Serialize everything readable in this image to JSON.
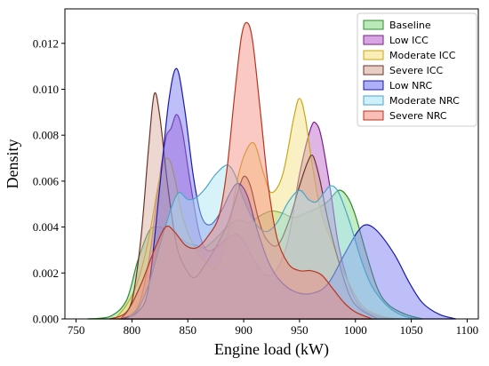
{
  "chart_data": {
    "type": "area",
    "title": "",
    "xlabel": "Engine load (kW)",
    "ylabel": "Density",
    "xlim": [
      740,
      1110
    ],
    "ylim": [
      0,
      0.0135
    ],
    "xticks": [
      750,
      800,
      850,
      900,
      950,
      1000,
      1050,
      1100
    ],
    "yticks": [
      0.0,
      0.002,
      0.004,
      0.006,
      0.008,
      0.01,
      0.012
    ],
    "ytick_labels": [
      "0.000",
      "0.002",
      "0.004",
      "0.006",
      "0.008",
      "0.010",
      "0.012"
    ],
    "grid": false,
    "legend_position": "top-right",
    "series": [
      {
        "name": "Baseline",
        "fill": "#7fd67f",
        "edge": "#2e8b2e",
        "points": [
          [
            760,
            0
          ],
          [
            780,
            0.0001
          ],
          [
            795,
            0.0008
          ],
          [
            805,
            0.0025
          ],
          [
            815,
            0.0038
          ],
          [
            822,
            0.004
          ],
          [
            830,
            0.0039
          ],
          [
            840,
            0.0036
          ],
          [
            850,
            0.0033
          ],
          [
            858,
            0.0032
          ],
          [
            865,
            0.0031
          ],
          [
            875,
            0.0035
          ],
          [
            885,
            0.004
          ],
          [
            895,
            0.0043
          ],
          [
            905,
            0.0042
          ],
          [
            915,
            0.0045
          ],
          [
            925,
            0.0047
          ],
          [
            935,
            0.0046
          ],
          [
            945,
            0.0044
          ],
          [
            955,
            0.0046
          ],
          [
            965,
            0.0048
          ],
          [
            975,
            0.0051
          ],
          [
            985,
            0.0056
          ],
          [
            993,
            0.0053
          ],
          [
            1000,
            0.0045
          ],
          [
            1010,
            0.0028
          ],
          [
            1020,
            0.0013
          ],
          [
            1030,
            0.0006
          ],
          [
            1045,
            0.0002
          ],
          [
            1060,
            0
          ]
        ]
      },
      {
        "name": "Low ICC",
        "fill": "#b85cc8",
        "edge": "#7a1f8a",
        "points": [
          [
            790,
            0
          ],
          [
            805,
            0.0005
          ],
          [
            815,
            0.0025
          ],
          [
            823,
            0.0055
          ],
          [
            830,
            0.0078
          ],
          [
            835,
            0.0083
          ],
          [
            840,
            0.0089
          ],
          [
            845,
            0.0082
          ],
          [
            852,
            0.006
          ],
          [
            860,
            0.0038
          ],
          [
            867,
            0.003
          ],
          [
            875,
            0.0031
          ],
          [
            885,
            0.0035
          ],
          [
            893,
            0.0037
          ],
          [
            900,
            0.0034
          ],
          [
            910,
            0.0025
          ],
          [
            920,
            0.0019
          ],
          [
            930,
            0.0022
          ],
          [
            940,
            0.0035
          ],
          [
            950,
            0.0063
          ],
          [
            960,
            0.0083
          ],
          [
            965,
            0.0085
          ],
          [
            970,
            0.0078
          ],
          [
            978,
            0.0055
          ],
          [
            985,
            0.0032
          ],
          [
            995,
            0.0014
          ],
          [
            1005,
            0.0005
          ],
          [
            1020,
            0.0001
          ],
          [
            1035,
            0
          ]
        ]
      },
      {
        "name": "Moderate ICC",
        "fill": "#f2e07a",
        "edge": "#c9a617",
        "points": [
          [
            785,
            0
          ],
          [
            795,
            0.0006
          ],
          [
            805,
            0.0016
          ],
          [
            815,
            0.0035
          ],
          [
            825,
            0.0062
          ],
          [
            832,
            0.007
          ],
          [
            838,
            0.0062
          ],
          [
            845,
            0.0045
          ],
          [
            855,
            0.0032
          ],
          [
            865,
            0.0025
          ],
          [
            875,
            0.0022
          ],
          [
            885,
            0.0035
          ],
          [
            895,
            0.0062
          ],
          [
            903,
            0.0074
          ],
          [
            910,
            0.0076
          ],
          [
            918,
            0.0063
          ],
          [
            925,
            0.0055
          ],
          [
            935,
            0.0063
          ],
          [
            945,
            0.0088
          ],
          [
            950,
            0.0096
          ],
          [
            955,
            0.0088
          ],
          [
            962,
            0.0065
          ],
          [
            970,
            0.0045
          ],
          [
            980,
            0.0032
          ],
          [
            990,
            0.002
          ],
          [
            1000,
            0.001
          ],
          [
            1010,
            0.0004
          ],
          [
            1025,
            0.0001
          ],
          [
            1040,
            0
          ]
        ]
      },
      {
        "name": "Severe ICC",
        "fill": "#d6a898",
        "edge": "#6b3326",
        "points": [
          [
            790,
            0
          ],
          [
            800,
            0.0008
          ],
          [
            808,
            0.0035
          ],
          [
            815,
            0.0075
          ],
          [
            820,
            0.0098
          ],
          [
            825,
            0.0088
          ],
          [
            832,
            0.0058
          ],
          [
            840,
            0.0032
          ],
          [
            848,
            0.0022
          ],
          [
            856,
            0.0018
          ],
          [
            866,
            0.0024
          ],
          [
            876,
            0.0032
          ],
          [
            886,
            0.0042
          ],
          [
            894,
            0.0054
          ],
          [
            900,
            0.0062
          ],
          [
            906,
            0.0058
          ],
          [
            913,
            0.0044
          ],
          [
            920,
            0.0035
          ],
          [
            930,
            0.0032
          ],
          [
            940,
            0.0042
          ],
          [
            950,
            0.0058
          ],
          [
            957,
            0.0068
          ],
          [
            962,
            0.0071
          ],
          [
            968,
            0.0061
          ],
          [
            975,
            0.0044
          ],
          [
            985,
            0.0025
          ],
          [
            995,
            0.001
          ],
          [
            1005,
            0.0004
          ],
          [
            1020,
            0
          ]
        ]
      },
      {
        "name": "Low NRC",
        "fill": "#6e6ef0",
        "edge": "#1b1ba8",
        "points": [
          [
            790,
            0
          ],
          [
            805,
            0.0003
          ],
          [
            815,
            0.0014
          ],
          [
            825,
            0.0058
          ],
          [
            833,
            0.0095
          ],
          [
            840,
            0.0109
          ],
          [
            847,
            0.0092
          ],
          [
            855,
            0.0062
          ],
          [
            862,
            0.0045
          ],
          [
            870,
            0.0041
          ],
          [
            880,
            0.0047
          ],
          [
            888,
            0.0055
          ],
          [
            895,
            0.0059
          ],
          [
            903,
            0.0054
          ],
          [
            912,
            0.0039
          ],
          [
            922,
            0.0025
          ],
          [
            932,
            0.0017
          ],
          [
            945,
            0.0012
          ],
          [
            960,
            0.0011
          ],
          [
            975,
            0.0015
          ],
          [
            990,
            0.0028
          ],
          [
            1002,
            0.0038
          ],
          [
            1010,
            0.0041
          ],
          [
            1020,
            0.0038
          ],
          [
            1035,
            0.0028
          ],
          [
            1048,
            0.0016
          ],
          [
            1060,
            0.0007
          ],
          [
            1075,
            0.0002
          ],
          [
            1090,
            0
          ]
        ]
      },
      {
        "name": "Moderate NRC",
        "fill": "#a8e3f5",
        "edge": "#4aa6c8",
        "points": [
          [
            795,
            0
          ],
          [
            805,
            0.0004
          ],
          [
            815,
            0.0015
          ],
          [
            825,
            0.0032
          ],
          [
            835,
            0.0048
          ],
          [
            842,
            0.0055
          ],
          [
            850,
            0.0052
          ],
          [
            858,
            0.0053
          ],
          [
            866,
            0.0057
          ],
          [
            875,
            0.0063
          ],
          [
            885,
            0.0067
          ],
          [
            892,
            0.0063
          ],
          [
            900,
            0.0052
          ],
          [
            910,
            0.0042
          ],
          [
            920,
            0.0038
          ],
          [
            930,
            0.0042
          ],
          [
            940,
            0.0051
          ],
          [
            950,
            0.0056
          ],
          [
            958,
            0.0052
          ],
          [
            965,
            0.0051
          ],
          [
            972,
            0.0055
          ],
          [
            978,
            0.0058
          ],
          [
            985,
            0.0055
          ],
          [
            995,
            0.0042
          ],
          [
            1005,
            0.0026
          ],
          [
            1015,
            0.0014
          ],
          [
            1030,
            0.0005
          ],
          [
            1045,
            0.0001
          ],
          [
            1060,
            0
          ]
        ]
      },
      {
        "name": "Severe NRC",
        "fill": "#f5887a",
        "edge": "#b8341f",
        "points": [
          [
            780,
            0
          ],
          [
            795,
            0.0003
          ],
          [
            808,
            0.0015
          ],
          [
            820,
            0.003
          ],
          [
            830,
            0.004
          ],
          [
            838,
            0.0038
          ],
          [
            848,
            0.0032
          ],
          [
            858,
            0.0031
          ],
          [
            868,
            0.0036
          ],
          [
            878,
            0.0045
          ],
          [
            885,
            0.0065
          ],
          [
            892,
            0.0098
          ],
          [
            898,
            0.0123
          ],
          [
            903,
            0.0129
          ],
          [
            908,
            0.0121
          ],
          [
            915,
            0.009
          ],
          [
            922,
            0.0058
          ],
          [
            930,
            0.0035
          ],
          [
            940,
            0.0024
          ],
          [
            950,
            0.0021
          ],
          [
            960,
            0.0021
          ],
          [
            970,
            0.0019
          ],
          [
            980,
            0.0013
          ],
          [
            990,
            0.0007
          ],
          [
            1000,
            0.0003
          ],
          [
            1015,
            0
          ]
        ]
      }
    ]
  }
}
